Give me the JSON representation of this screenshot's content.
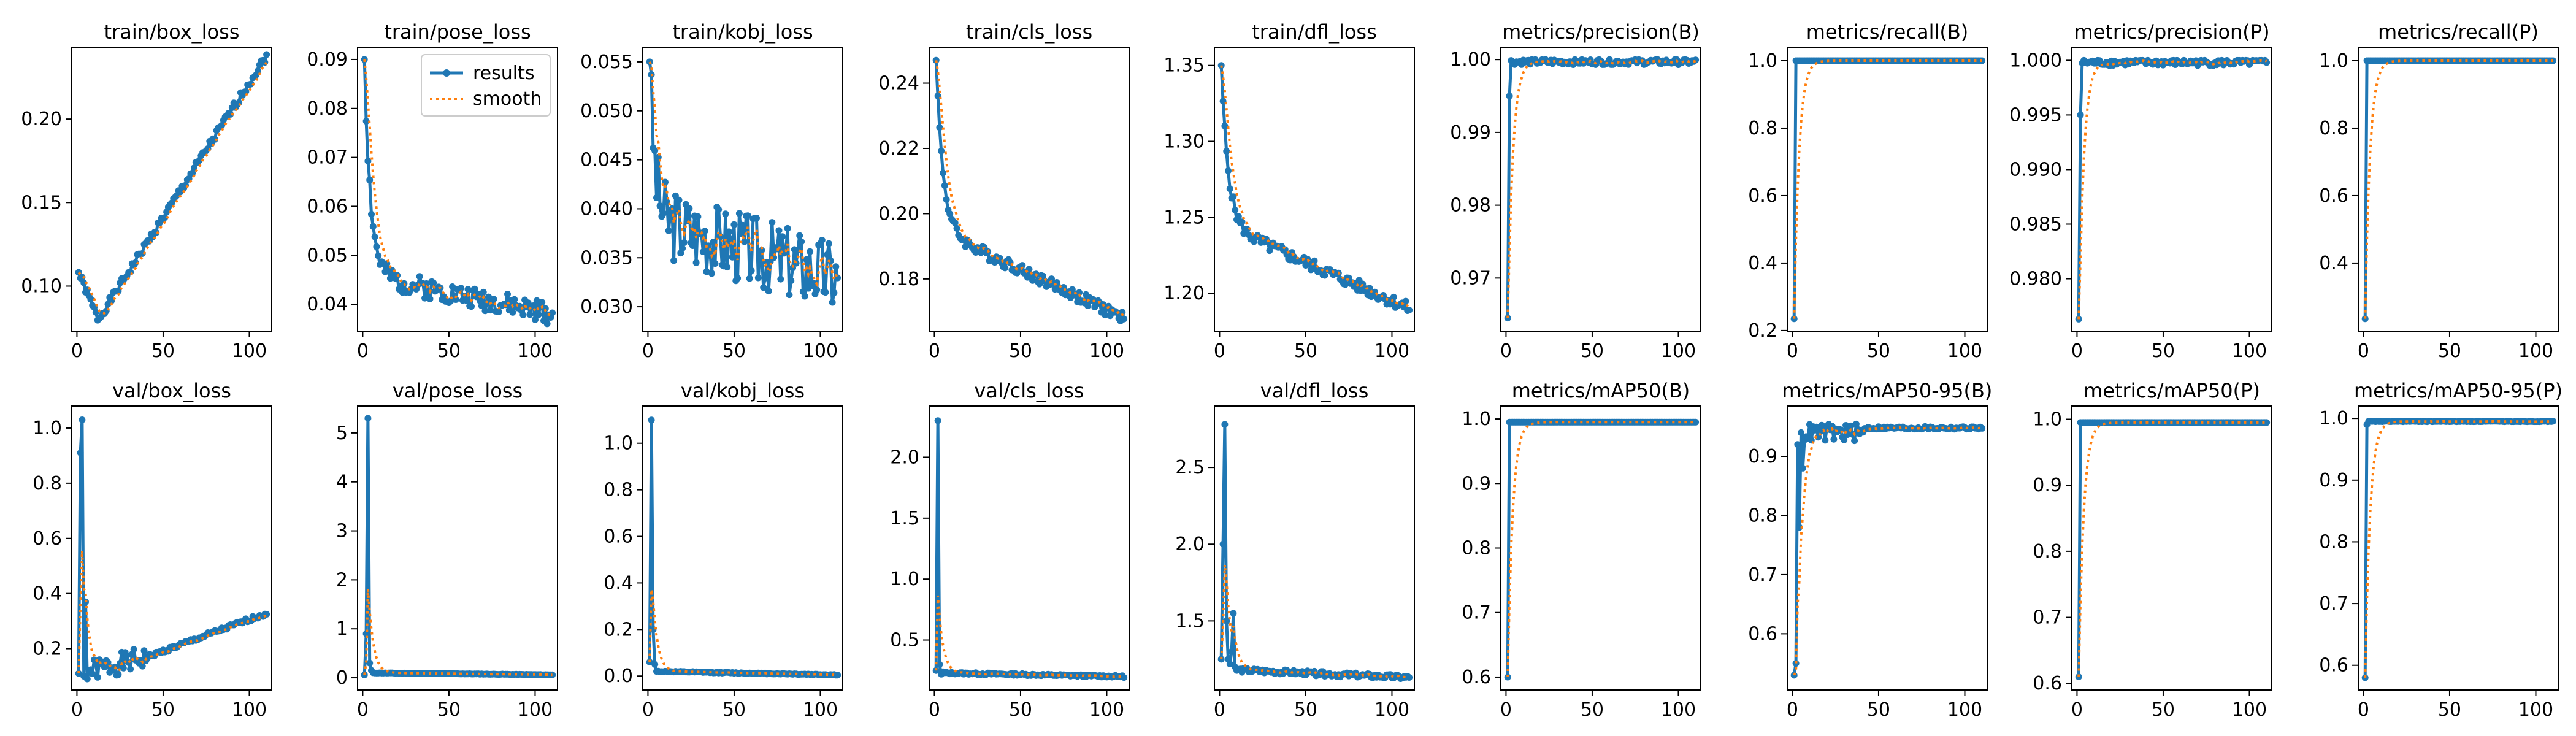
{
  "legend": {
    "labels": [
      "results",
      "smooth"
    ]
  },
  "colors": {
    "results": "#1f77b4",
    "smooth": "#ff7f0e",
    "axes": "#000000"
  },
  "chart_data": [
    {
      "type": "line",
      "title": "train/box_loss",
      "xlim": [
        -3,
        113
      ],
      "ylim": [
        0.073,
        0.243
      ],
      "xticks": [
        0,
        50,
        100
      ],
      "yticks": [
        0.1,
        0.15,
        0.2
      ],
      "ytick_labels": [
        "0.10",
        "0.15",
        "0.20"
      ],
      "curve": {
        "kind": "train_box",
        "start": 0.108
      }
    },
    {
      "type": "line",
      "title": "train/pose_loss",
      "xlim": [
        -3,
        113
      ],
      "ylim": [
        0.0345,
        0.0925
      ],
      "xticks": [
        0,
        50,
        100
      ],
      "yticks": [
        0.04,
        0.05,
        0.06,
        0.07,
        0.08,
        0.09
      ],
      "ytick_labels": [
        "0.04",
        "0.05",
        "0.06",
        "0.07",
        "0.08",
        "0.09"
      ],
      "legend": true,
      "curve": {
        "kind": "loss",
        "start": 0.09,
        "plateau": 0.046,
        "final": 0.038,
        "decay": 3.5,
        "noise": 0.0022,
        "seed": 2
      }
    },
    {
      "type": "line",
      "title": "train/kobj_loss",
      "xlim": [
        -3,
        113
      ],
      "ylim": [
        0.0275,
        0.0565
      ],
      "xticks": [
        0,
        50,
        100
      ],
      "yticks": [
        0.03,
        0.035,
        0.04,
        0.045,
        0.05,
        0.055
      ],
      "ytick_labels": [
        "0.030",
        "0.035",
        "0.040",
        "0.045",
        "0.050",
        "0.055"
      ],
      "curve": {
        "kind": "loss",
        "start": 0.055,
        "plateau": 0.039,
        "final": 0.033,
        "decay": 3.0,
        "noise": 0.0038,
        "seed": 3
      }
    },
    {
      "type": "line",
      "title": "train/cls_loss",
      "xlim": [
        -3,
        113
      ],
      "ylim": [
        0.164,
        0.251
      ],
      "xticks": [
        0,
        50,
        100
      ],
      "yticks": [
        0.18,
        0.2,
        0.22,
        0.24
      ],
      "ytick_labels": [
        "0.18",
        "0.20",
        "0.22",
        "0.24"
      ],
      "curve": {
        "kind": "loss",
        "start": 0.247,
        "plateau": 0.195,
        "final": 0.168,
        "decay": 4.0,
        "noise": 0.0018,
        "seed": 4
      }
    },
    {
      "type": "line",
      "title": "train/dfl_loss",
      "xlim": [
        -3,
        113
      ],
      "ylim": [
        1.175,
        1.362
      ],
      "xticks": [
        0,
        50,
        100
      ],
      "yticks": [
        1.2,
        1.25,
        1.3,
        1.35
      ],
      "ytick_labels": [
        "1.20",
        "1.25",
        "1.30",
        "1.35"
      ],
      "curve": {
        "kind": "loss",
        "start": 1.35,
        "plateau": 1.245,
        "final": 1.19,
        "decay": 4.0,
        "noise": 0.004,
        "seed": 5
      }
    },
    {
      "type": "line",
      "title": "metrics/precision(B)",
      "xlim": [
        -3,
        113
      ],
      "ylim": [
        0.9627,
        1.0017
      ],
      "xticks": [
        0,
        50,
        100
      ],
      "yticks": [
        0.97,
        0.98,
        0.99,
        1.0
      ],
      "ytick_labels": [
        "0.97",
        "0.98",
        "0.99",
        "1.00"
      ],
      "curve": {
        "kind": "metric",
        "first": 0.9645,
        "second": 0.995,
        "final": 0.9997,
        "noise": 0.0004,
        "seed": 6
      }
    },
    {
      "type": "line",
      "title": "metrics/recall(B)",
      "xlim": [
        -3,
        113
      ],
      "ylim": [
        0.198,
        1.04
      ],
      "xticks": [
        0,
        50,
        100
      ],
      "yticks": [
        0.2,
        0.4,
        0.6,
        0.8,
        1.0
      ],
      "ytick_labels": [
        "0.2",
        "0.4",
        "0.6",
        "0.8",
        "1.0"
      ],
      "curve": {
        "kind": "metric",
        "first": 0.235,
        "second": 1.0,
        "final": 1.0,
        "noise": 0.0,
        "seed": 7
      }
    },
    {
      "type": "line",
      "title": "metrics/precision(P)",
      "xlim": [
        -3,
        113
      ],
      "ylim": [
        0.9752,
        1.0012
      ],
      "xticks": [
        0,
        50,
        100
      ],
      "yticks": [
        0.98,
        0.985,
        0.99,
        0.995,
        1.0
      ],
      "ytick_labels": [
        "0.980",
        "0.985",
        "0.990",
        "0.995",
        "1.000"
      ],
      "curve": {
        "kind": "metric",
        "first": 0.9763,
        "second": 0.995,
        "final": 0.9998,
        "noise": 0.0003,
        "seed": 8
      }
    },
    {
      "type": "line",
      "title": "metrics/recall(P)",
      "xlim": [
        -3,
        113
      ],
      "ylim": [
        0.198,
        1.04
      ],
      "xticks": [
        0,
        50,
        100
      ],
      "yticks": [
        0.4,
        0.6,
        0.8,
        1.0
      ],
      "ytick_labels": [
        "0.4",
        "0.6",
        "0.8",
        "1.0"
      ],
      "curve": {
        "kind": "metric",
        "first": 0.235,
        "second": 1.0,
        "final": 1.0,
        "noise": 0.0,
        "seed": 9
      }
    },
    {
      "type": "line",
      "title": "val/box_loss",
      "xlim": [
        -3,
        113
      ],
      "ylim": [
        0.05,
        1.08
      ],
      "xticks": [
        0,
        50,
        100
      ],
      "yticks": [
        0.2,
        0.4,
        0.6,
        0.8,
        1.0
      ],
      "ytick_labels": [
        "0.2",
        "0.4",
        "0.6",
        "0.8",
        "1.0"
      ],
      "curve": {
        "kind": "val_box"
      }
    },
    {
      "type": "line",
      "title": "val/pose_loss",
      "xlim": [
        -3,
        113
      ],
      "ylim": [
        -0.25,
        5.55
      ],
      "xticks": [
        0,
        50,
        100
      ],
      "yticks": [
        0,
        1,
        2,
        3,
        4,
        5
      ],
      "ytick_labels": [
        "0",
        "1",
        "2",
        "3",
        "4",
        "5"
      ],
      "curve": {
        "kind": "spike",
        "values": [
          0.06,
          0.9,
          5.3,
          0.3,
          0.15
        ],
        "base": 0.1,
        "final": 0.06,
        "noise": 0.004,
        "seed": 11
      }
    },
    {
      "type": "line",
      "title": "val/kobj_loss",
      "xlim": [
        -3,
        113
      ],
      "ylim": [
        -0.06,
        1.16
      ],
      "xticks": [
        0,
        50,
        100
      ],
      "yticks": [
        0.0,
        0.2,
        0.4,
        0.6,
        0.8,
        1.0
      ],
      "ytick_labels": [
        "0.0",
        "0.2",
        "0.4",
        "0.6",
        "0.8",
        "1.0"
      ],
      "curve": {
        "kind": "spike",
        "values": [
          0.06,
          1.1,
          0.2,
          0.05,
          0.02
        ],
        "base": 0.02,
        "final": 0.005,
        "noise": 0.002,
        "seed": 12
      }
    },
    {
      "type": "line",
      "title": "val/cls_loss",
      "xlim": [
        -3,
        113
      ],
      "ylim": [
        0.09,
        2.42
      ],
      "xticks": [
        0,
        50,
        100
      ],
      "yticks": [
        0.5,
        1.0,
        1.5,
        2.0
      ],
      "ytick_labels": [
        "0.5",
        "1.0",
        "1.5",
        "2.0"
      ],
      "curve": {
        "kind": "spike",
        "values": [
          0.25,
          2.3,
          0.3,
          0.22,
          0.24
        ],
        "base": 0.23,
        "final": 0.2,
        "noise": 0.008,
        "seed": 13
      }
    },
    {
      "type": "line",
      "title": "val/dfl_loss",
      "xlim": [
        -3,
        113
      ],
      "ylim": [
        1.05,
        2.9
      ],
      "xticks": [
        0,
        50,
        100
      ],
      "yticks": [
        1.5,
        2.0,
        2.5
      ],
      "ytick_labels": [
        "1.5",
        "2.0",
        "2.5"
      ],
      "curve": {
        "kind": "spike",
        "values": [
          1.25,
          2.0,
          2.78,
          1.5,
          1.25,
          1.22,
          1.3,
          1.55,
          1.2
        ],
        "base": 1.18,
        "final": 1.13,
        "noise": 0.015,
        "seed": 14
      }
    },
    {
      "type": "line",
      "title": "metrics/mAP50(B)",
      "xlim": [
        -3,
        113
      ],
      "ylim": [
        0.58,
        1.02
      ],
      "xticks": [
        0,
        50,
        100
      ],
      "yticks": [
        0.6,
        0.7,
        0.8,
        0.9,
        1.0
      ],
      "ytick_labels": [
        "0.6",
        "0.7",
        "0.8",
        "0.9",
        "1.0"
      ],
      "curve": {
        "kind": "metric",
        "first": 0.6,
        "second": 0.995,
        "final": 0.995,
        "noise": 0.0,
        "seed": 15
      }
    },
    {
      "type": "line",
      "title": "metrics/mAP50-95(B)",
      "xlim": [
        -3,
        113
      ],
      "ylim": [
        0.505,
        0.985
      ],
      "xticks": [
        0,
        50,
        100
      ],
      "yticks": [
        0.6,
        0.7,
        0.8,
        0.9
      ],
      "ytick_labels": [
        "0.6",
        "0.7",
        "0.8",
        "0.9"
      ],
      "curve": {
        "kind": "map9595",
        "seed": 16
      }
    },
    {
      "type": "line",
      "title": "metrics/mAP50(P)",
      "xlim": [
        -3,
        113
      ],
      "ylim": [
        0.59,
        1.02
      ],
      "xticks": [
        0,
        50,
        100
      ],
      "yticks": [
        0.6,
        0.7,
        0.8,
        0.9,
        1.0
      ],
      "ytick_labels": [
        "0.6",
        "0.7",
        "0.8",
        "0.9",
        "1.0"
      ],
      "curve": {
        "kind": "metric",
        "first": 0.61,
        "second": 0.995,
        "final": 0.995,
        "noise": 0.0,
        "seed": 17
      }
    },
    {
      "type": "line",
      "title": "metrics/mAP50-95(P)",
      "xlim": [
        -3,
        113
      ],
      "ylim": [
        0.56,
        1.02
      ],
      "xticks": [
        0,
        50,
        100
      ],
      "yticks": [
        0.6,
        0.7,
        0.8,
        0.9,
        1.0
      ],
      "ytick_labels": [
        "0.6",
        "0.7",
        "0.8",
        "0.9",
        "1.0"
      ],
      "curve": {
        "kind": "metric",
        "first": 0.58,
        "second": 0.99,
        "final": 0.995,
        "noise": 0.0005,
        "seed": 18
      }
    }
  ]
}
